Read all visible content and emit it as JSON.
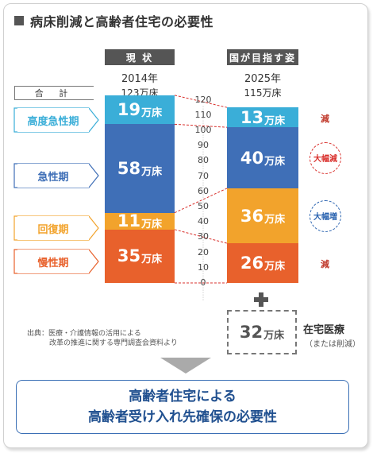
{
  "title": "病床削減と高齢者住宅の必要性",
  "columns": {
    "current": {
      "tag": "現 状",
      "year": "2014年",
      "beds": "123万床"
    },
    "future": {
      "tag": "国が目指す姿",
      "year": "2025年",
      "beds": "115万床"
    }
  },
  "sum_label": "合 計",
  "categories": [
    {
      "label": "高度急性期",
      "color": "#3aaed8"
    },
    {
      "label": "急性期",
      "color": "#3f6fb7"
    },
    {
      "label": "回復期",
      "color": "#f2a32c"
    },
    {
      "label": "慢性期",
      "color": "#e8612c"
    }
  ],
  "unit": "万床",
  "chart_data": {
    "type": "bar",
    "categories": [
      "2014年",
      "2025年"
    ],
    "series": [
      {
        "name": "高度急性期",
        "values": [
          19,
          13
        ]
      },
      {
        "name": "急性期",
        "values": [
          58,
          40
        ]
      },
      {
        "name": "回復期",
        "values": [
          11,
          36
        ]
      },
      {
        "name": "慢性期",
        "values": [
          35,
          26
        ]
      }
    ],
    "axis_ticks": [
      "120",
      "110",
      "100",
      "90",
      "80",
      "70",
      "60",
      "50",
      "40",
      "30",
      "20",
      "10",
      "0"
    ],
    "ylim": [
      0,
      120
    ]
  },
  "changes": [
    {
      "text": "減",
      "kind": "plain",
      "color": "#c0392b"
    },
    {
      "text": "大幅減",
      "kind": "badge",
      "color": "#d9302c"
    },
    {
      "text": "大幅増",
      "kind": "badge",
      "color": "#2a63b0"
    },
    {
      "text": "減",
      "kind": "plain",
      "color": "#c0392b"
    }
  ],
  "home_care": {
    "value": "32",
    "unit": "万床",
    "label": "在宅医療",
    "sub": "（または削減）"
  },
  "source": {
    "line1": "出典：医療・介護情報の活用による",
    "line2": "改革の推進に関する専門調査会資料より"
  },
  "conclusion": {
    "line1": "高齢者住宅による",
    "line2": "高齢者受け入れ先確保の必要性"
  }
}
